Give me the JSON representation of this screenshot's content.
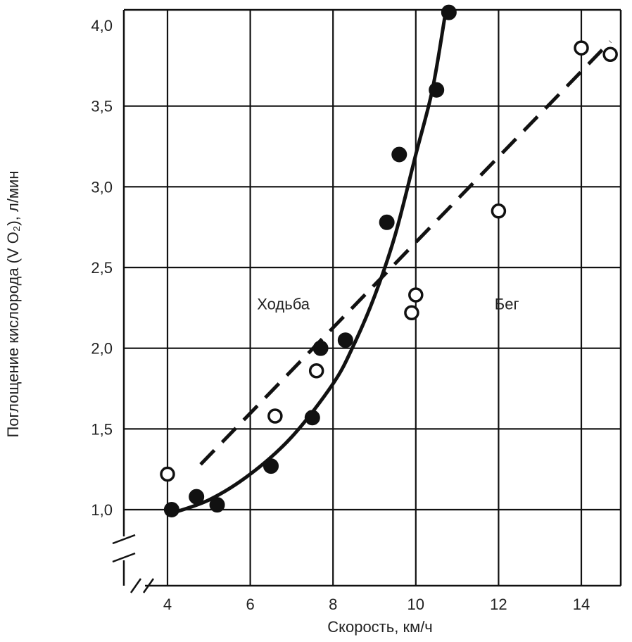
{
  "chart_data": {
    "type": "scatter",
    "xlabel": "Скорость, км/ч",
    "ylabel": "Поглощение кислорода (V O₂), л/мин",
    "xlim": [
      3,
      15
    ],
    "ylim": [
      0.7,
      4.2
    ],
    "x_ticks": [
      {
        "value": 4,
        "label": "4"
      },
      {
        "value": 6,
        "label": "6"
      },
      {
        "value": 8,
        "label": "8"
      },
      {
        "value": 10,
        "label": "10"
      },
      {
        "value": 12,
        "label": "12"
      },
      {
        "value": 14,
        "label": "14"
      }
    ],
    "y_ticks": [
      {
        "value": 1.0,
        "label": "1,0"
      },
      {
        "value": 1.5,
        "label": "1,5"
      },
      {
        "value": 2.0,
        "label": "2,0"
      },
      {
        "value": 2.5,
        "label": "2,5"
      },
      {
        "value": 3.0,
        "label": "3,0"
      },
      {
        "value": 3.5,
        "label": "3,5"
      },
      {
        "value": 4.0,
        "label": "4,0"
      }
    ],
    "grid_x": [
      4,
      6,
      8,
      10,
      12,
      14
    ],
    "grid_y": [
      1.0,
      1.5,
      2.0,
      2.5,
      3.0,
      3.5
    ],
    "series": [
      {
        "name": "Ходьба",
        "marker": "filled",
        "line": "solid",
        "points": [
          {
            "x": 4.1,
            "y": 1.0
          },
          {
            "x": 4.7,
            "y": 1.08
          },
          {
            "x": 5.2,
            "y": 1.03
          },
          {
            "x": 6.5,
            "y": 1.27
          },
          {
            "x": 7.5,
            "y": 1.57
          },
          {
            "x": 7.7,
            "y": 2.0
          },
          {
            "x": 8.3,
            "y": 2.05
          },
          {
            "x": 9.3,
            "y": 2.78
          },
          {
            "x": 9.6,
            "y": 3.2
          },
          {
            "x": 10.5,
            "y": 3.6
          },
          {
            "x": 10.8,
            "y": 4.08
          }
        ],
        "curve": [
          {
            "x": 4.0,
            "y": 0.97
          },
          {
            "x": 5.0,
            "y": 1.06
          },
          {
            "x": 6.0,
            "y": 1.22
          },
          {
            "x": 7.0,
            "y": 1.45
          },
          {
            "x": 8.0,
            "y": 1.78
          },
          {
            "x": 8.5,
            "y": 2.02
          },
          {
            "x": 9.0,
            "y": 2.32
          },
          {
            "x": 9.5,
            "y": 2.7
          },
          {
            "x": 10.0,
            "y": 3.2
          },
          {
            "x": 10.4,
            "y": 3.6
          },
          {
            "x": 10.7,
            "y": 4.05
          }
        ]
      },
      {
        "name": "Бег",
        "marker": "open",
        "line": "dashed",
        "points": [
          {
            "x": 4.0,
            "y": 1.22
          },
          {
            "x": 6.6,
            "y": 1.58
          },
          {
            "x": 7.6,
            "y": 1.86
          },
          {
            "x": 9.9,
            "y": 2.22
          },
          {
            "x": 10.0,
            "y": 2.33
          },
          {
            "x": 12.0,
            "y": 2.85
          },
          {
            "x": 14.0,
            "y": 3.86
          },
          {
            "x": 14.7,
            "y": 3.82
          }
        ],
        "curve": [
          {
            "x": 4.8,
            "y": 1.28
          },
          {
            "x": 14.7,
            "y": 3.9
          }
        ]
      }
    ],
    "annotations": [
      {
        "text": "Ходьба",
        "x": 6.8,
        "y": 2.24
      },
      {
        "text": "Бег",
        "x": 12.2,
        "y": 2.24
      }
    ]
  }
}
